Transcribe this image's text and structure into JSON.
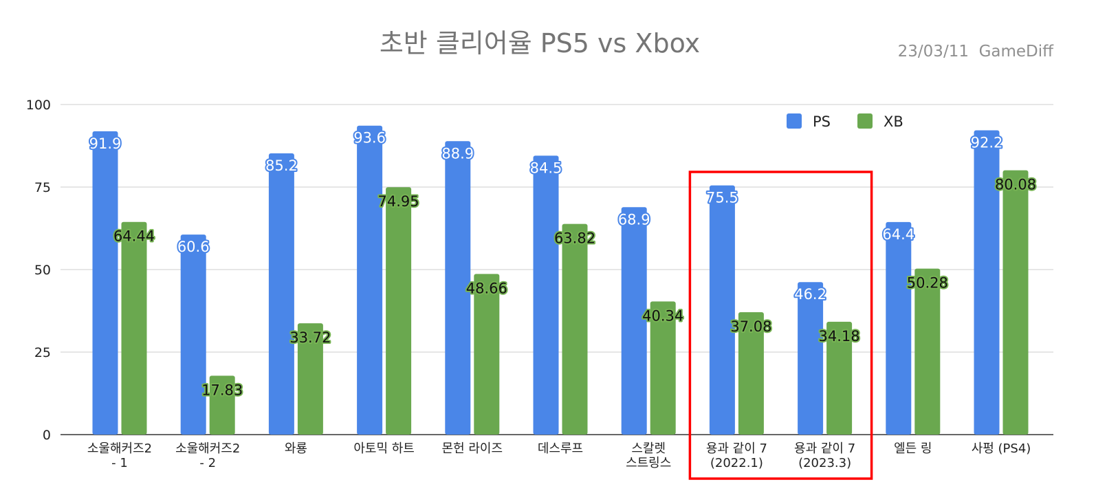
{
  "chart_data": {
    "type": "bar",
    "title": "초반 클리어율 PS5 vs Xbox",
    "subtitle": "23/03/11  GameDiff",
    "xlabel": "",
    "ylabel": "",
    "ylim": [
      0,
      100
    ],
    "yticks": [
      0,
      25,
      50,
      75,
      100
    ],
    "grid": true,
    "legend_position": "top-right",
    "categories": [
      [
        "소울해커즈2",
        "- 1"
      ],
      [
        "소울해커즈2",
        "- 2"
      ],
      [
        "와룡"
      ],
      [
        "아토믹 하트"
      ],
      [
        "몬헌 라이즈"
      ],
      [
        "데스루프"
      ],
      [
        "스칼렛",
        "스트링스"
      ],
      [
        "용과 같이 7",
        "(2022.1)"
      ],
      [
        "용과 같이 7",
        "(2023.3)"
      ],
      [
        "엘든 링"
      ],
      [
        "사펑 (PS4)"
      ]
    ],
    "series": [
      {
        "name": "PS",
        "color": "#4a86e8",
        "values": [
          91.9,
          60.6,
          85.2,
          93.6,
          88.9,
          84.5,
          68.9,
          75.5,
          46.2,
          64.4,
          92.2
        ],
        "labels": [
          "91.9",
          "60.6",
          "85.2",
          "93.6",
          "88.9",
          "84.5",
          "68.9",
          "75.5",
          "46.2",
          "64.4",
          "92.2"
        ]
      },
      {
        "name": "XB",
        "color": "#6aa84f",
        "values": [
          64.44,
          17.83,
          33.72,
          74.95,
          48.66,
          63.82,
          40.34,
          37.08,
          34.18,
          50.28,
          80.08
        ],
        "labels": [
          "64.44",
          "17.83",
          "33.72",
          "74.95",
          "48.66",
          "63.82",
          "40.34",
          "37.08",
          "34.18",
          "50.28",
          "80.08"
        ]
      }
    ],
    "highlight": {
      "categories": [
        7,
        8
      ],
      "color": "#ff0000"
    }
  }
}
